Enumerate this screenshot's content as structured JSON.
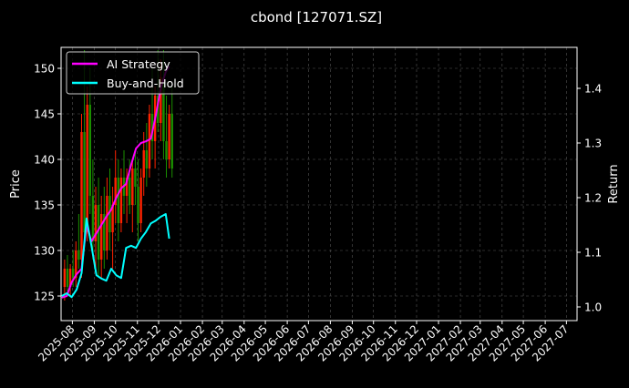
{
  "chart_data": {
    "type": "line",
    "title": "cbond [127071.SZ]",
    "ylabel": "Price",
    "ylabel_right": "Return",
    "ylim": [
      122.3,
      152.3
    ],
    "ylim_right": [
      0.975,
      1.475
    ],
    "xlim": [
      "2025-07-16",
      "2027-07-16"
    ],
    "grid": true,
    "legend_placement": "top-left",
    "yticks": [
      125,
      130,
      135,
      140,
      145,
      150
    ],
    "yticks_right": [
      1.0,
      1.1,
      1.2,
      1.3,
      1.4
    ],
    "xticks": [
      "2025-08",
      "2025-09",
      "2025-10",
      "2025-11",
      "2025-12",
      "2026-01",
      "2026-02",
      "2026-03",
      "2026-04",
      "2026-05",
      "2026-06",
      "2026-07",
      "2026-08",
      "2026-09",
      "2026-10",
      "2026-11",
      "2026-12",
      "2027-01",
      "2027-02",
      "2027-03",
      "2027-04",
      "2027-05",
      "2027-06",
      "2027-07"
    ],
    "candles": {
      "start": "2025-07-21",
      "step_days": 4,
      "ohlc": [
        [
          126,
          129,
          124.5,
          128
        ],
        [
          128,
          129.5,
          125,
          126
        ],
        [
          126,
          128.5,
          125,
          128
        ],
        [
          128,
          130,
          126,
          127
        ],
        [
          127,
          131,
          126,
          130
        ],
        [
          130,
          134,
          128,
          129
        ],
        [
          129,
          145,
          127,
          143
        ],
        [
          143,
          152,
          130,
          132
        ],
        [
          132,
          148,
          131,
          146
        ],
        [
          146,
          150,
          134,
          136
        ],
        [
          136,
          140,
          129,
          131
        ],
        [
          131,
          137,
          128,
          135
        ],
        [
          135,
          138,
          127,
          129
        ],
        [
          129,
          136,
          127,
          134
        ],
        [
          134,
          137,
          128,
          130
        ],
        [
          130,
          138,
          129,
          136
        ],
        [
          136,
          139,
          130,
          132
        ],
        [
          132,
          137,
          128,
          135
        ],
        [
          135,
          141,
          133,
          138
        ],
        [
          138,
          140,
          131,
          133
        ],
        [
          133,
          139,
          132,
          138
        ],
        [
          138,
          141,
          134,
          136
        ],
        [
          136,
          139,
          133,
          138
        ],
        [
          138,
          140,
          134,
          135
        ],
        [
          135,
          140,
          132,
          139
        ],
        [
          139,
          141,
          135,
          137
        ],
        [
          137,
          140,
          131,
          133
        ],
        [
          133,
          139,
          132,
          138
        ],
        [
          138,
          143,
          136,
          141
        ],
        [
          141,
          144,
          137,
          139
        ],
        [
          139,
          146,
          138,
          145
        ],
        [
          145,
          150,
          140,
          142
        ],
        [
          142,
          148,
          139,
          147
        ],
        [
          147,
          152,
          143,
          144
        ],
        [
          144,
          151,
          142,
          149
        ],
        [
          149,
          152,
          140,
          142
        ],
        [
          142,
          147,
          138,
          140
        ],
        [
          140,
          146,
          139,
          145
        ],
        [
          145,
          148,
          138,
          139
        ]
      ],
      "up_color": "#ff2200",
      "down_color": "#1a8f00"
    },
    "x": [
      "2025-07-17",
      "2025-07-24",
      "2025-07-31",
      "2025-08-07",
      "2025-08-14",
      "2025-08-21",
      "2025-08-28",
      "2025-09-04",
      "2025-09-11",
      "2025-09-18",
      "2025-09-25",
      "2025-10-02",
      "2025-10-09",
      "2025-10-16",
      "2025-10-23",
      "2025-10-30",
      "2025-11-06",
      "2025-11-13",
      "2025-11-20",
      "2025-11-27",
      "2025-12-04",
      "2025-12-11",
      "2025-12-16"
    ],
    "series": [
      {
        "name": "AI Strategy",
        "color": "#ff00ff",
        "values": [
          1.017,
          1.02,
          1.045,
          1.06,
          1.07,
          1.15,
          1.12,
          1.135,
          1.15,
          1.165,
          1.178,
          1.2,
          1.217,
          1.225,
          1.26,
          1.29,
          1.3,
          1.303,
          1.308,
          1.35,
          1.4,
          1.43,
          1.44
        ]
      },
      {
        "name": "Buy-and-Hold",
        "color": "#00ffff",
        "values": [
          1.02,
          1.025,
          1.018,
          1.032,
          1.062,
          1.162,
          1.112,
          1.058,
          1.052,
          1.048,
          1.07,
          1.058,
          1.053,
          1.108,
          1.112,
          1.108,
          1.125,
          1.137,
          1.153,
          1.158,
          1.165,
          1.17,
          1.125
        ]
      }
    ]
  }
}
